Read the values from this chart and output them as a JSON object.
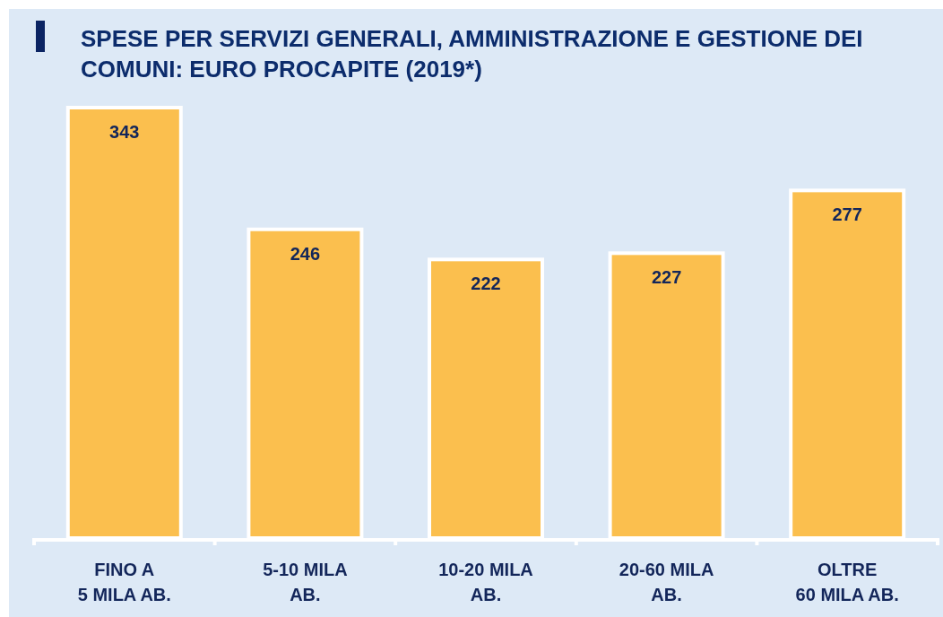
{
  "chart_data": {
    "type": "bar",
    "title": "SPESE PER SERVIZI GENERALI, AMMINISTRAZIONE E GESTIONE DEI\nCOMUNI: EURO PROCAPITE (2019*)",
    "categories": [
      "FINO A\n5 MILA AB.",
      "5-10 MILA\nAB.",
      "10-20 MILA\nAB.",
      "20-60 MILA\nAB.",
      "OLTRE\n60 MILA AB."
    ],
    "values": [
      343,
      246,
      222,
      227,
      277
    ],
    "color": "#fbbf4e",
    "data_labels": true
  }
}
